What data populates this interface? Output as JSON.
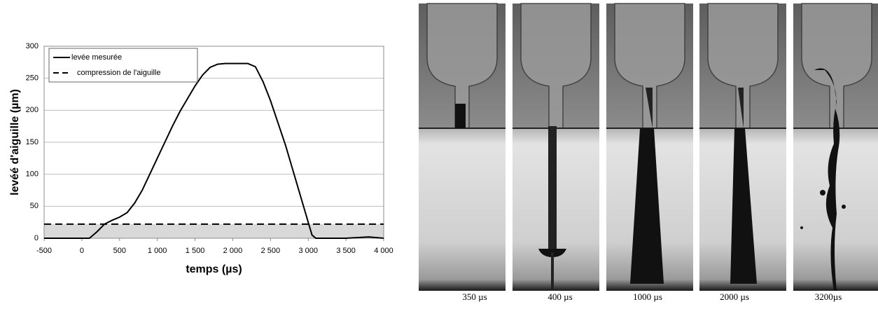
{
  "chart_data": {
    "type": "line",
    "x": [
      -500,
      0,
      100,
      200,
      300,
      400,
      500,
      600,
      700,
      800,
      900,
      1000,
      1100,
      1200,
      1300,
      1400,
      1500,
      1600,
      1700,
      1800,
      1900,
      2000,
      2100,
      2200,
      2300,
      2400,
      2500,
      2600,
      2700,
      2800,
      2900,
      3000,
      3050,
      3100,
      3500,
      3800,
      4000
    ],
    "series": [
      {
        "name": "levée mesurée",
        "color": "#000000",
        "values": [
          0,
          0,
          0,
          10,
          22,
          28,
          33,
          40,
          55,
          75,
          100,
          125,
          150,
          175,
          198,
          218,
          238,
          255,
          267,
          272,
          273,
          273,
          273,
          273,
          268,
          245,
          215,
          180,
          145,
          105,
          65,
          25,
          5,
          0,
          0,
          2,
          0
        ]
      }
    ],
    "reference_line": {
      "name": "compression de l'aiguille",
      "value": 22,
      "color": "#000000",
      "shade": "#d9d9d9"
    },
    "xlabel": "temps (µs)",
    "ylabel": "levéé d'aiguille (µm)",
    "xlim": [
      -500,
      4000
    ],
    "ylim": [
      0,
      300
    ],
    "xticks": [
      -500,
      0,
      500,
      {
        "value": 1000,
        "label": "1 000"
      },
      {
        "value": 1500,
        "label": "1 500"
      },
      {
        "value": 2000,
        "label": "2 000"
      },
      {
        "value": 2500,
        "label": "2 500"
      },
      {
        "value": 3000,
        "label": "3 000"
      },
      {
        "value": 3500,
        "label": "3 500"
      },
      {
        "value": 4000,
        "label": "4 000"
      }
    ],
    "yticks": [
      0,
      50,
      100,
      150,
      200,
      250,
      300
    ],
    "grid": true,
    "legend": "top-left"
  },
  "images": [
    {
      "caption": "350 µs"
    },
    {
      "caption": "400 µs"
    },
    {
      "caption": "1000 µs"
    },
    {
      "caption": "2000 µs"
    },
    {
      "caption": "3200µs"
    }
  ]
}
